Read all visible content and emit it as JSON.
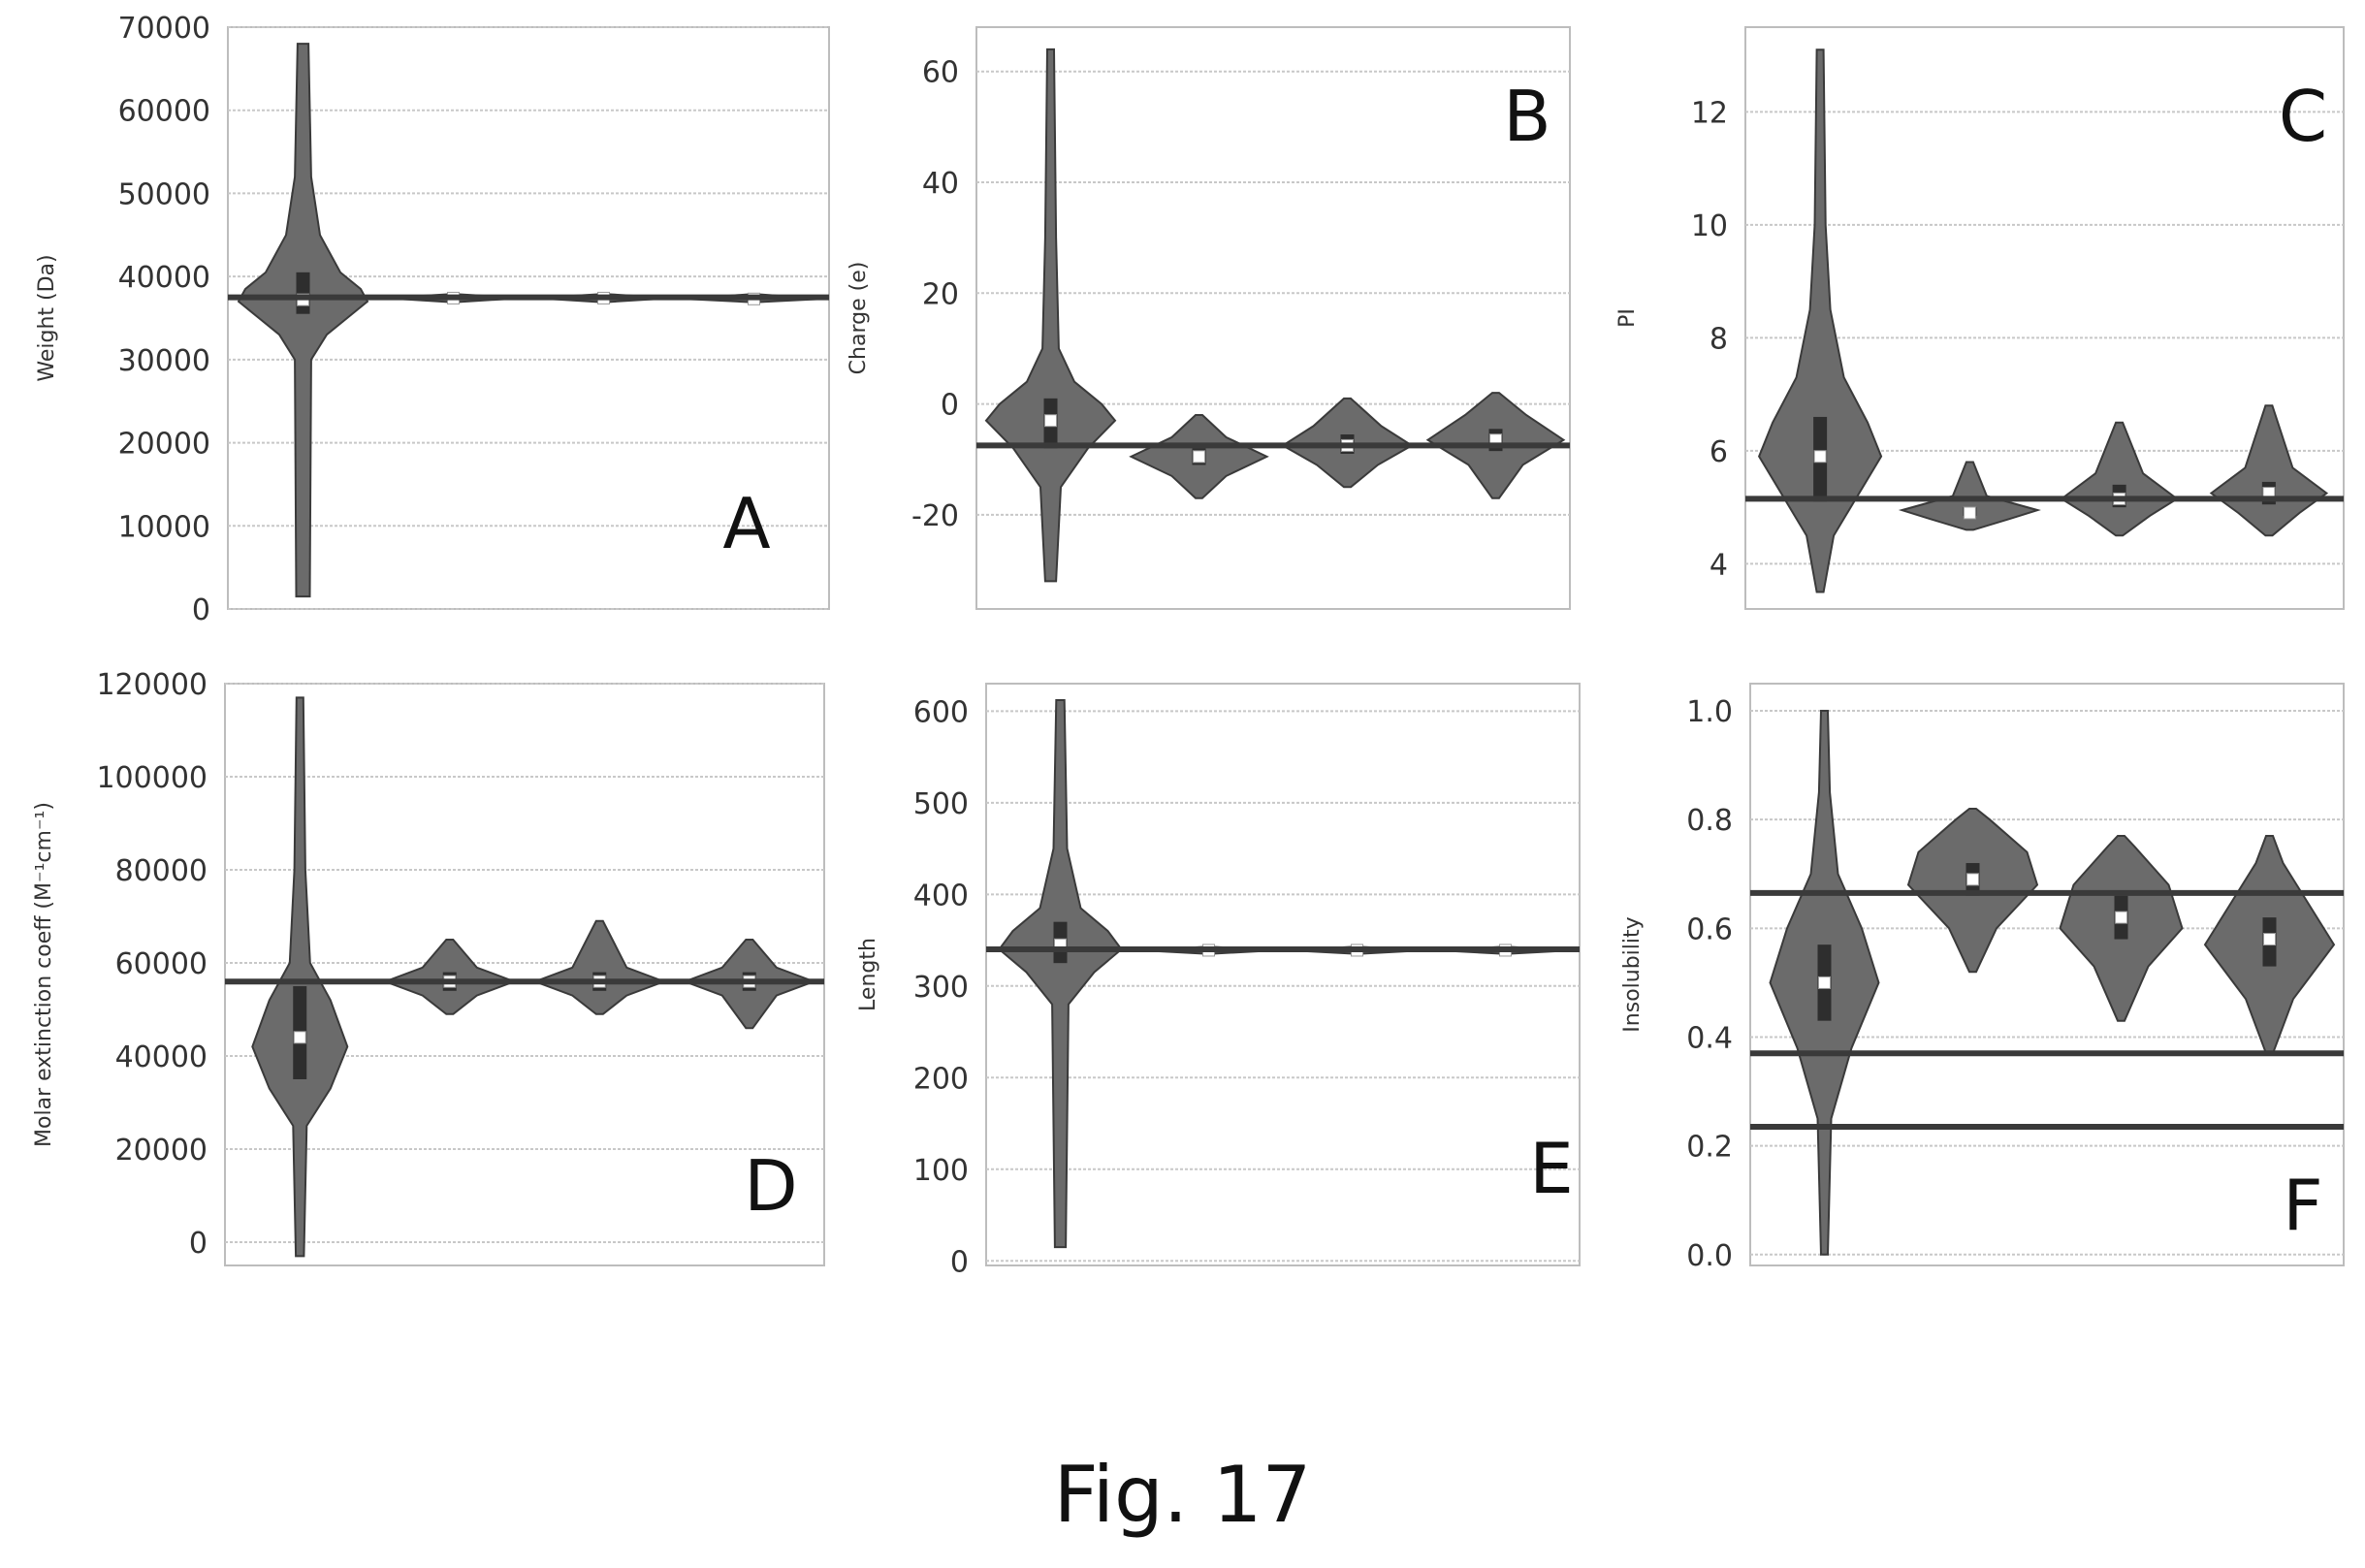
{
  "figure": {
    "caption": "Fig. 17",
    "colors": {
      "violin_fill": "#6b6b6b",
      "ink": "#3a3a3a",
      "grid": "#c8c8c8",
      "median_marker": "#ffffff"
    }
  },
  "chart_data": [
    {
      "panel": "A",
      "type": "violin",
      "title": "",
      "xlabel": "",
      "ylabel": "Weight (Da)",
      "ylim": [
        0,
        70000
      ],
      "yticks": [
        0,
        10000,
        20000,
        30000,
        40000,
        50000,
        60000,
        70000
      ],
      "grid": true,
      "reference_lines": [
        37500
      ],
      "violins": [
        {
          "min": 1500,
          "max": 68000,
          "median": 37200,
          "q1": 35500,
          "q3": 40500,
          "shape": [
            [
              1500,
              0.1
            ],
            [
              30000,
              0.12
            ],
            [
              33000,
              0.35
            ],
            [
              35000,
              0.65
            ],
            [
              37000,
              0.95
            ],
            [
              38500,
              0.85
            ],
            [
              40500,
              0.55
            ],
            [
              45000,
              0.25
            ],
            [
              52000,
              0.12
            ],
            [
              68000,
              0.08
            ]
          ]
        },
        {
          "min": 36900,
          "max": 37900,
          "median": 37400,
          "q1": 37200,
          "q3": 37600,
          "shape": [
            [
              36900,
              0.0
            ],
            [
              37400,
              1.0
            ],
            [
              37900,
              0.0
            ]
          ]
        },
        {
          "min": 36900,
          "max": 37900,
          "median": 37400,
          "q1": 37200,
          "q3": 37600,
          "shape": [
            [
              36900,
              0.0
            ],
            [
              37400,
              1.0
            ],
            [
              37900,
              0.0
            ]
          ]
        },
        {
          "min": 36900,
          "max": 37900,
          "median": 37300,
          "q1": 37100,
          "q3": 37500,
          "shape": [
            [
              36900,
              0.0
            ],
            [
              37300,
              1.0
            ],
            [
              37900,
              0.0
            ]
          ]
        }
      ]
    },
    {
      "panel": "B",
      "type": "violin",
      "title": "",
      "xlabel": "",
      "ylabel": "Charge (e)",
      "ylim": [
        -37,
        68
      ],
      "yticks": [
        -20,
        0,
        20,
        40,
        60
      ],
      "grid": true,
      "reference_lines": [
        -7.5
      ],
      "violins": [
        {
          "min": -32,
          "max": 64,
          "median": -3,
          "q1": -8,
          "q3": 1,
          "shape": [
            [
              -32,
              0.08
            ],
            [
              -15,
              0.15
            ],
            [
              -8,
              0.55
            ],
            [
              -3,
              0.95
            ],
            [
              0,
              0.75
            ],
            [
              4,
              0.35
            ],
            [
              10,
              0.12
            ],
            [
              30,
              0.08
            ],
            [
              64,
              0.05
            ]
          ]
        },
        {
          "min": -17,
          "max": -2,
          "median": -9.5,
          "q1": -11,
          "q3": -8,
          "shape": [
            [
              -17,
              0.05
            ],
            [
              -13,
              0.4
            ],
            [
              -9.5,
              1.0
            ],
            [
              -6,
              0.4
            ],
            [
              -2,
              0.05
            ]
          ]
        },
        {
          "min": -15,
          "max": 1,
          "median": -7.5,
          "q1": -9,
          "q3": -5.5,
          "shape": [
            [
              -15,
              0.05
            ],
            [
              -11,
              0.45
            ],
            [
              -7.5,
              0.95
            ],
            [
              -4,
              0.5
            ],
            [
              1,
              0.05
            ]
          ]
        },
        {
          "min": -17,
          "max": 2,
          "median": -6.5,
          "q1": -8.5,
          "q3": -4.5,
          "shape": [
            [
              -17,
              0.05
            ],
            [
              -11,
              0.4
            ],
            [
              -6.5,
              1.0
            ],
            [
              -2,
              0.45
            ],
            [
              2,
              0.05
            ]
          ]
        }
      ]
    },
    {
      "panel": "C",
      "type": "violin",
      "title": "",
      "xlabel": "",
      "ylabel": "PI",
      "ylim": [
        3.2,
        13.5
      ],
      "yticks": [
        4,
        6,
        8,
        10,
        12
      ],
      "grid": true,
      "reference_lines": [
        5.15
      ],
      "violins": [
        {
          "min": 3.5,
          "max": 13.1,
          "median": 5.9,
          "q1": 5.1,
          "q3": 6.6,
          "shape": [
            [
              3.5,
              0.05
            ],
            [
              4.5,
              0.2
            ],
            [
              5.2,
              0.55
            ],
            [
              5.9,
              0.9
            ],
            [
              6.5,
              0.7
            ],
            [
              7.3,
              0.35
            ],
            [
              8.5,
              0.15
            ],
            [
              10,
              0.08
            ],
            [
              13.1,
              0.05
            ]
          ]
        },
        {
          "min": 4.6,
          "max": 5.8,
          "median": 4.9,
          "q1": 4.85,
          "q3": 5.0,
          "shape": [
            [
              4.6,
              0.05
            ],
            [
              4.8,
              0.6
            ],
            [
              4.95,
              1.0
            ],
            [
              5.2,
              0.25
            ],
            [
              5.8,
              0.05
            ]
          ]
        },
        {
          "min": 4.5,
          "max": 6.5,
          "median": 5.15,
          "q1": 5.0,
          "q3": 5.4,
          "shape": [
            [
              4.5,
              0.05
            ],
            [
              4.85,
              0.45
            ],
            [
              5.15,
              0.85
            ],
            [
              5.6,
              0.35
            ],
            [
              6.5,
              0.05
            ]
          ]
        },
        {
          "min": 4.5,
          "max": 6.8,
          "median": 5.25,
          "q1": 5.05,
          "q3": 5.45,
          "shape": [
            [
              4.5,
              0.05
            ],
            [
              4.9,
              0.45
            ],
            [
              5.25,
              0.85
            ],
            [
              5.7,
              0.35
            ],
            [
              6.8,
              0.05
            ]
          ]
        }
      ]
    },
    {
      "panel": "D",
      "type": "violin",
      "title": "",
      "xlabel": "",
      "ylabel": "Molar extinction coeff (M⁻¹cm⁻¹)",
      "ylim": [
        -5000,
        120000
      ],
      "yticks": [
        0,
        20000,
        40000,
        60000,
        80000,
        100000,
        120000
      ],
      "grid": true,
      "reference_lines": [
        56000
      ],
      "violins": [
        {
          "min": -3000,
          "max": 117000,
          "median": 44000,
          "q1": 35000,
          "q3": 55000,
          "shape": [
            [
              -3000,
              0.06
            ],
            [
              25000,
              0.1
            ],
            [
              33000,
              0.45
            ],
            [
              42000,
              0.7
            ],
            [
              52000,
              0.45
            ],
            [
              60000,
              0.15
            ],
            [
              80000,
              0.08
            ],
            [
              117000,
              0.05
            ]
          ]
        },
        {
          "min": 49000,
          "max": 65000,
          "median": 56000,
          "q1": 54000,
          "q3": 58000,
          "shape": [
            [
              49000,
              0.05
            ],
            [
              53000,
              0.4
            ],
            [
              56000,
              0.95
            ],
            [
              59000,
              0.4
            ],
            [
              65000,
              0.05
            ]
          ]
        },
        {
          "min": 49000,
          "max": 69000,
          "median": 56000,
          "q1": 54000,
          "q3": 58000,
          "shape": [
            [
              49000,
              0.05
            ],
            [
              53000,
              0.4
            ],
            [
              56000,
              0.95
            ],
            [
              59000,
              0.4
            ],
            [
              69000,
              0.05
            ]
          ]
        },
        {
          "min": 46000,
          "max": 65000,
          "median": 56000,
          "q1": 54000,
          "q3": 58000,
          "shape": [
            [
              46000,
              0.05
            ],
            [
              53000,
              0.4
            ],
            [
              56000,
              0.95
            ],
            [
              59000,
              0.4
            ],
            [
              65000,
              0.05
            ]
          ]
        }
      ]
    },
    {
      "panel": "E",
      "type": "violin",
      "title": "",
      "xlabel": "",
      "ylabel": "Length",
      "ylim": [
        -5,
        630
      ],
      "yticks": [
        0,
        100,
        200,
        300,
        400,
        500,
        600
      ],
      "grid": true,
      "reference_lines": [
        340
      ],
      "violins": [
        {
          "min": 15,
          "max": 612,
          "median": 345,
          "q1": 325,
          "q3": 370,
          "shape": [
            [
              15,
              0.08
            ],
            [
              280,
              0.12
            ],
            [
              315,
              0.5
            ],
            [
              340,
              0.9
            ],
            [
              360,
              0.7
            ],
            [
              385,
              0.3
            ],
            [
              450,
              0.1
            ],
            [
              612,
              0.06
            ]
          ]
        },
        {
          "min": 335,
          "max": 343,
          "median": 339,
          "q1": 337,
          "q3": 341,
          "shape": [
            [
              335,
              0.0
            ],
            [
              339,
              1.0
            ],
            [
              343,
              0.0
            ]
          ]
        },
        {
          "min": 335,
          "max": 343,
          "median": 339,
          "q1": 337,
          "q3": 341,
          "shape": [
            [
              335,
              0.0
            ],
            [
              339,
              1.0
            ],
            [
              343,
              0.0
            ]
          ]
        },
        {
          "min": 335,
          "max": 343,
          "median": 339,
          "q1": 337,
          "q3": 341,
          "shape": [
            [
              335,
              0.0
            ],
            [
              339,
              1.0
            ],
            [
              343,
              0.0
            ]
          ]
        }
      ]
    },
    {
      "panel": "F",
      "type": "violin",
      "title": "",
      "xlabel": "",
      "ylabel": "Insolubility",
      "ylim": [
        -0.02,
        1.05
      ],
      "yticks": [
        0.0,
        0.2,
        0.4,
        0.6,
        0.8,
        1.0
      ],
      "ytick_labels": [
        "0.0",
        "0.2",
        "0.4",
        "0.6",
        "0.8",
        "1.0"
      ],
      "grid": true,
      "reference_lines": [
        0.665,
        0.37,
        0.235
      ],
      "violins": [
        {
          "min": 0.0,
          "max": 1.0,
          "median": 0.5,
          "q1": 0.43,
          "q3": 0.57,
          "shape": [
            [
              0.0,
              0.05
            ],
            [
              0.25,
              0.1
            ],
            [
              0.38,
              0.4
            ],
            [
              0.5,
              0.8
            ],
            [
              0.6,
              0.55
            ],
            [
              0.7,
              0.2
            ],
            [
              0.85,
              0.08
            ],
            [
              1.0,
              0.05
            ]
          ]
        },
        {
          "min": 0.52,
          "max": 0.82,
          "median": 0.69,
          "q1": 0.66,
          "q3": 0.72,
          "shape": [
            [
              0.52,
              0.05
            ],
            [
              0.6,
              0.35
            ],
            [
              0.68,
              0.95
            ],
            [
              0.74,
              0.8
            ],
            [
              0.8,
              0.25
            ],
            [
              0.82,
              0.05
            ]
          ]
        },
        {
          "min": 0.43,
          "max": 0.77,
          "median": 0.62,
          "q1": 0.58,
          "q3": 0.66,
          "shape": [
            [
              0.43,
              0.05
            ],
            [
              0.53,
              0.4
            ],
            [
              0.6,
              0.9
            ],
            [
              0.68,
              0.7
            ],
            [
              0.75,
              0.2
            ],
            [
              0.77,
              0.05
            ]
          ]
        },
        {
          "min": 0.37,
          "max": 0.77,
          "median": 0.58,
          "q1": 0.53,
          "q3": 0.62,
          "shape": [
            [
              0.37,
              0.05
            ],
            [
              0.47,
              0.35
            ],
            [
              0.57,
              0.95
            ],
            [
              0.64,
              0.6
            ],
            [
              0.72,
              0.2
            ],
            [
              0.77,
              0.05
            ]
          ]
        }
      ]
    }
  ]
}
